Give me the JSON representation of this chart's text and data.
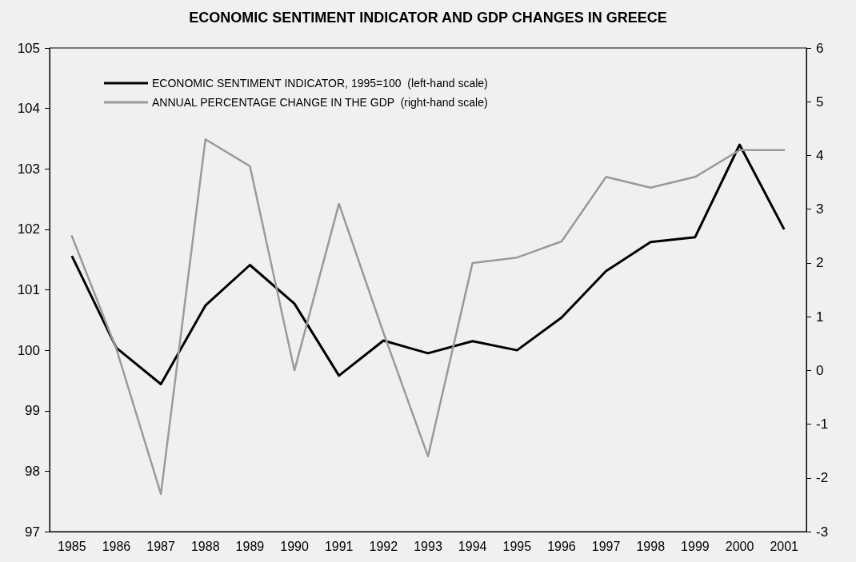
{
  "chart_data": {
    "type": "line",
    "title": "ECONOMIC SENTIMENT INDICATOR AND GDP CHANGES IN GREECE",
    "categories": [
      "1985",
      "1986",
      "1987",
      "1988",
      "1989",
      "1990",
      "1991",
      "1992",
      "1993",
      "1994",
      "1995",
      "1996",
      "1997",
      "1998",
      "1999",
      "2000",
      "2001"
    ],
    "series": [
      {
        "name": "ECONOMIC SENTIMENT INDICATOR, 1995=100  (left-hand scale)",
        "color": "#000000",
        "values": [
          101.56,
          100.04,
          99.44,
          100.74,
          101.41,
          100.77,
          99.58,
          100.16,
          99.95,
          100.15,
          100.0,
          100.54,
          101.31,
          101.79,
          101.87,
          103.4,
          102.0
        ]
      },
      {
        "name": "ANNUAL PERCENTAGE CHANGE IN THE GDP  (right-hand scale)",
        "color": "#9a9a9a",
        "axis": "y2",
        "values": [
          2.5,
          0.4,
          -2.3,
          4.3,
          3.8,
          0.0,
          3.1,
          0.7,
          -1.6,
          2.0,
          2.1,
          2.4,
          3.6,
          3.4,
          3.6,
          4.1,
          4.1
        ]
      }
    ],
    "ylim": [
      97,
      105
    ],
    "yticks": [
      97,
      98,
      99,
      100,
      101,
      102,
      103,
      104,
      105
    ],
    "y2lim": [
      -3,
      6
    ],
    "y2ticks": [
      -3,
      -2,
      -1,
      0,
      1,
      2,
      3,
      4,
      5,
      6
    ],
    "legend": "top left",
    "grid": false,
    "marker": "none",
    "line_style": "solid"
  }
}
